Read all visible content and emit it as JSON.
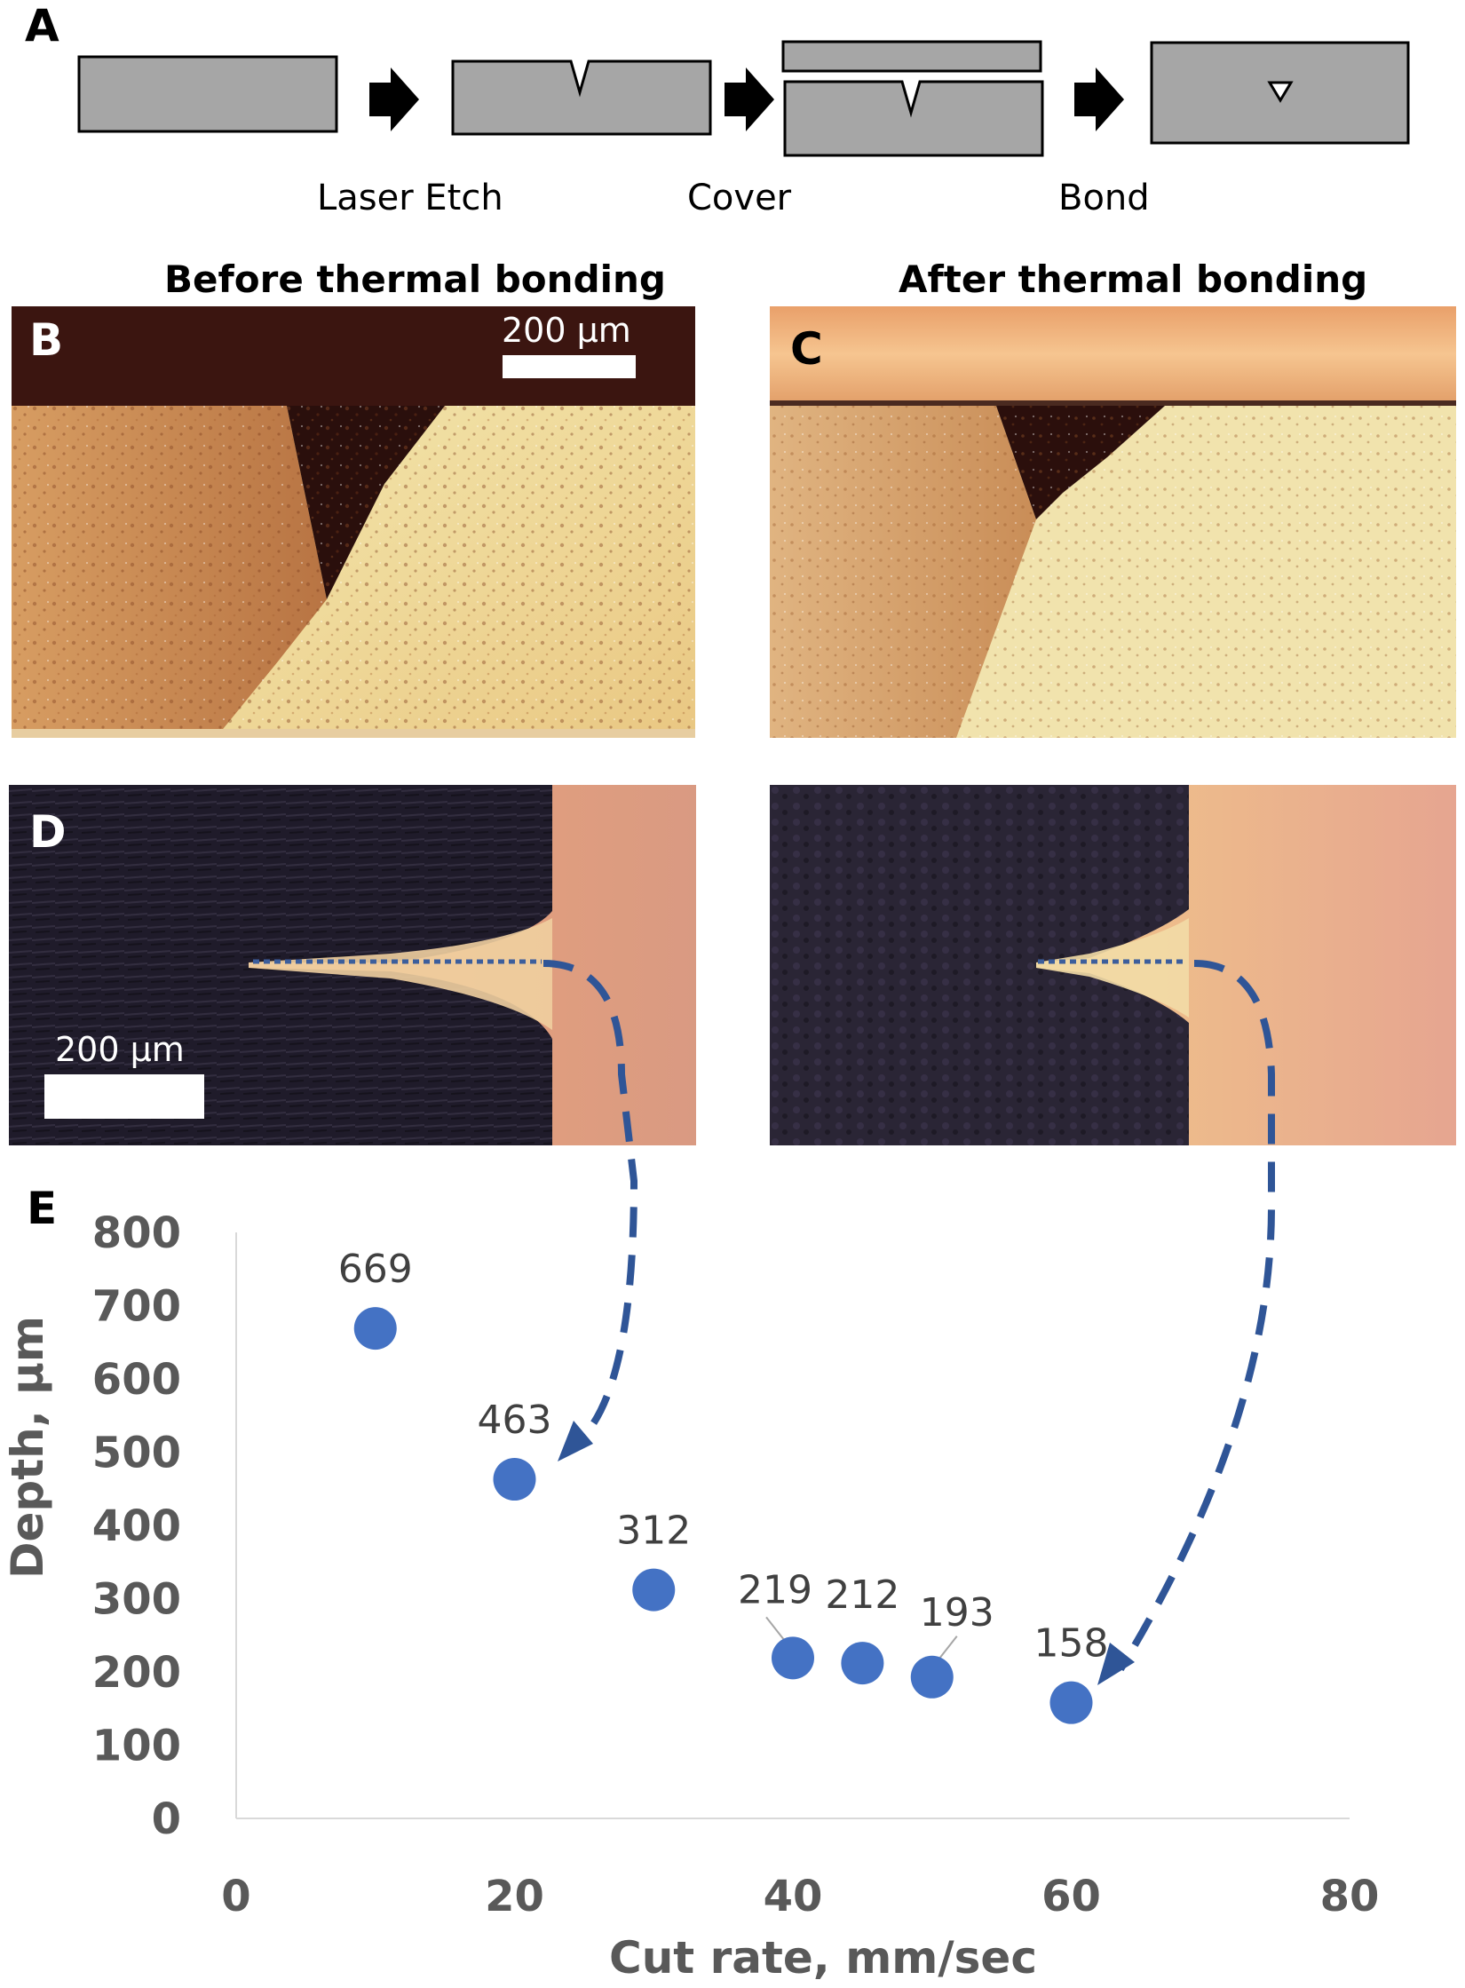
{
  "panel_a": {
    "letter": "A",
    "steps": [
      "Laser Etch",
      "Cover",
      "Bond"
    ],
    "colors": {
      "block_fill": "#a6a6a6",
      "block_stroke": "#000000",
      "arrow": "#000000"
    }
  },
  "columns": {
    "before": "Before thermal bonding",
    "after": "After thermal bonding"
  },
  "panel_b": {
    "letter": "B",
    "scale_label": "200 µm"
  },
  "panel_c": {
    "letter": "C"
  },
  "panel_d": {
    "letter": "D",
    "scale_label": "200 µm"
  },
  "panel_e": {
    "letter": "E"
  },
  "colors": {
    "marker": "#4472c4",
    "connector": "#2f5597"
  },
  "chart_data": {
    "type": "scatter",
    "xlabel": "Cut rate, mm/sec",
    "ylabel": "Depth, µm",
    "xlim": [
      0,
      80
    ],
    "ylim": [
      0,
      800
    ],
    "xticks": [
      0,
      20,
      40,
      60,
      80
    ],
    "yticks": [
      0,
      100,
      200,
      300,
      400,
      500,
      600,
      700,
      800
    ],
    "grid": false,
    "legend": "none",
    "points": [
      {
        "x": 10,
        "y": 669,
        "label": "669"
      },
      {
        "x": 20,
        "y": 463,
        "label": "463"
      },
      {
        "x": 30,
        "y": 312,
        "label": "312"
      },
      {
        "x": 40,
        "y": 219,
        "label": "219"
      },
      {
        "x": 45,
        "y": 212,
        "label": "212"
      },
      {
        "x": 50,
        "y": 193,
        "label": "193"
      },
      {
        "x": 60,
        "y": 158,
        "label": "158"
      }
    ]
  }
}
